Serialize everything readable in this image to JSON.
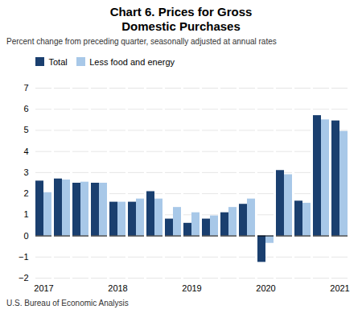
{
  "chart_data": {
    "type": "bar",
    "title": "Chart 6. Prices for Gross\nDomestic Purchases",
    "subtitle": "Percent change from preceding quarter, seasonally adjusted at annual rates",
    "caption": "U.S. Bureau of Economic Analysis",
    "categories": [
      "2017",
      null,
      null,
      null,
      "2018",
      null,
      null,
      null,
      "2019",
      null,
      null,
      null,
      "2020",
      null,
      null,
      null,
      "2021"
    ],
    "series": [
      {
        "name": "Total",
        "color": "#1a3f6f",
        "values": [
          2.6,
          2.7,
          2.5,
          2.5,
          1.6,
          1.6,
          2.1,
          0.8,
          0.6,
          0.8,
          1.1,
          1.5,
          -1.25,
          3.1,
          1.65,
          5.7,
          5.45
        ]
      },
      {
        "name": "Less food and energy",
        "color": "#a8c8e8",
        "values": [
          2.05,
          2.65,
          2.55,
          2.5,
          1.6,
          1.75,
          1.75,
          1.35,
          1.1,
          0.95,
          1.35,
          1.75,
          -0.35,
          2.9,
          1.55,
          5.5,
          4.95
        ]
      }
    ],
    "ylim": [
      -2,
      7
    ],
    "yticks": [
      -2,
      -1,
      0,
      1,
      2,
      3,
      4,
      5,
      6,
      7
    ],
    "grid": true,
    "legend": "upper left"
  }
}
